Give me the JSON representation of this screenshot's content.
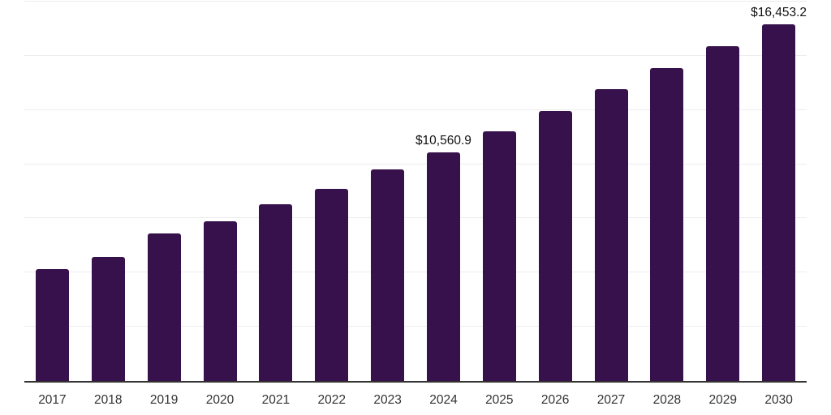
{
  "chart_data": {
    "type": "bar",
    "title": "",
    "xlabel": "",
    "ylabel": "",
    "categories": [
      "2017",
      "2018",
      "2019",
      "2020",
      "2021",
      "2022",
      "2023",
      "2024",
      "2025",
      "2026",
      "2027",
      "2028",
      "2029",
      "2030"
    ],
    "values": [
      5150,
      5730,
      6790,
      7350,
      8160,
      8880,
      9750,
      10560.9,
      11530,
      12470,
      13450,
      14440,
      15460,
      16453.2
    ],
    "labeled_points": [
      {
        "category": "2024",
        "label": "$10,560.9"
      },
      {
        "category": "2030",
        "label": "$16,453.2"
      }
    ],
    "ylim": [
      0,
      17500
    ],
    "gridline_step": 2500,
    "grid": true,
    "legend": false,
    "colors": {
      "bar": "#36114B",
      "axis": "#333333",
      "grid": "#ededed",
      "value_label": "#111111",
      "tick_label": "#333333",
      "background": "#ffffff"
    }
  }
}
